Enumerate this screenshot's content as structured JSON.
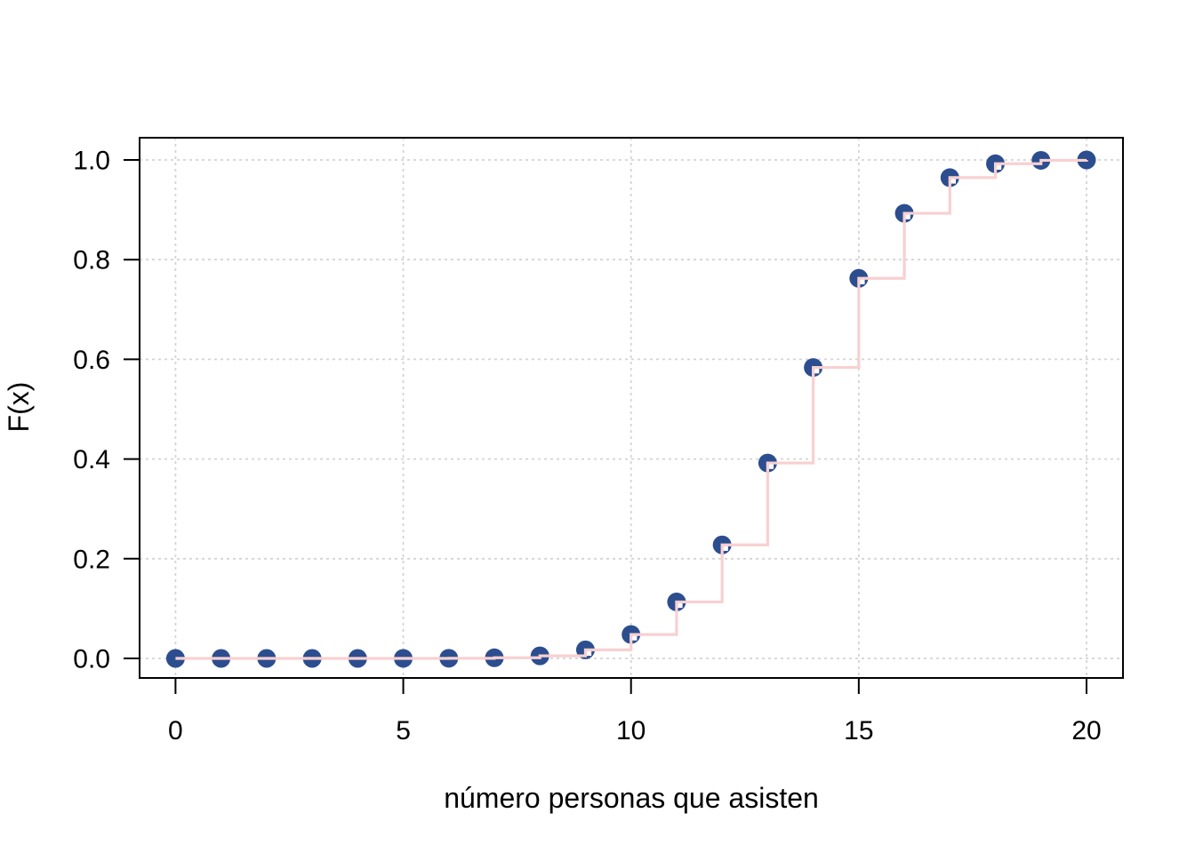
{
  "chart_data": {
    "type": "step",
    "title": "",
    "xlabel": "número personas que asisten",
    "ylabel": "F(x)",
    "x": [
      0,
      1,
      2,
      3,
      4,
      5,
      6,
      7,
      8,
      9,
      10,
      11,
      12,
      13,
      14,
      15,
      16,
      17,
      18,
      19,
      20
    ],
    "y": [
      0.0,
      0.0,
      0.0,
      1e-06,
      6e-06,
      4.4e-05,
      0.000265,
      0.001279,
      0.005138,
      0.017145,
      0.047962,
      0.113331,
      0.227725,
      0.392006,
      0.583631,
      0.762492,
      0.892913,
      0.964516,
      0.992363,
      0.999204,
      1.0
    ],
    "xticks": {
      "values": [
        0,
        5,
        10,
        15,
        20
      ],
      "labels": [
        "0",
        "5",
        "10",
        "15",
        "20"
      ]
    },
    "yticks": {
      "values": [
        0,
        0.2,
        0.4,
        0.6,
        0.8,
        1.0
      ],
      "labels": [
        "0.0",
        "0.2",
        "0.4",
        "0.6",
        "0.8",
        "1.0"
      ]
    },
    "xlim": [
      0,
      20
    ],
    "ylim": [
      0,
      1
    ],
    "grid": {
      "show": true,
      "style": "dashed"
    },
    "legend": "none",
    "colors": {
      "point": "#2c4e8f",
      "step_line": "#f8d0d0",
      "grid": "#d4d4d4",
      "axis": "#000000",
      "background": "#ffffff",
      "text": "#000000"
    }
  }
}
